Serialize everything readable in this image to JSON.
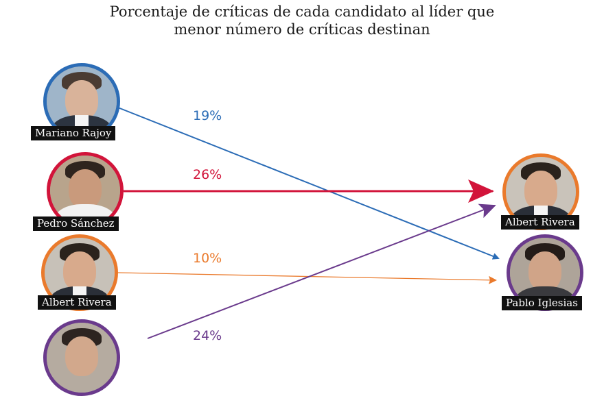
{
  "title": {
    "line1": "Porcentaje de críticas de cada candidato al líder que",
    "line2": "menor número de críticas destinan"
  },
  "colors": {
    "rajoy": "#2b6cb6",
    "sanchez": "#d2143a",
    "rivera": "#ea7a2c",
    "iglesias": "#6a3a8c"
  },
  "sources": [
    {
      "name": "Mariano Rajoy",
      "percent": "19%",
      "target": "Pablo Iglesias"
    },
    {
      "name": "Pedro Sánchez",
      "percent": "26%",
      "target": "Albert Rivera"
    },
    {
      "name": "Albert Rivera",
      "percent": "10%",
      "target": "Pablo Iglesias"
    },
    {
      "name": "",
      "percent": "24%",
      "target": "Albert Rivera"
    }
  ],
  "targets": [
    {
      "name": "Albert Rivera"
    },
    {
      "name": "Pablo Iglesias"
    }
  ]
}
